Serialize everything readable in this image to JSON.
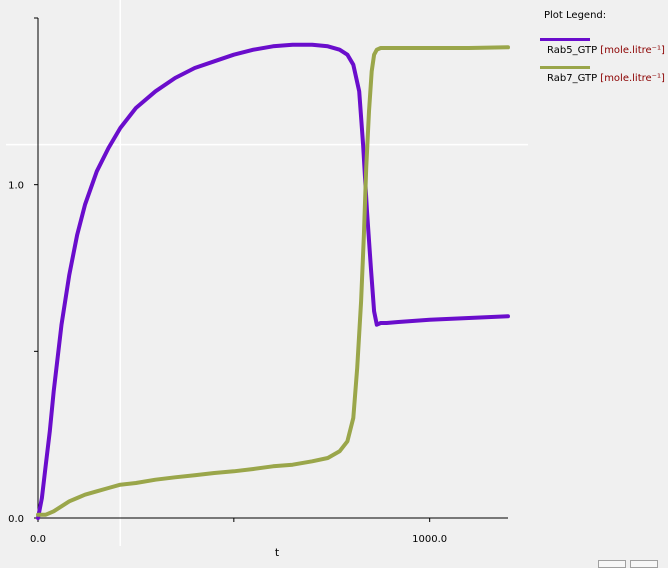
{
  "legend": {
    "title": "Plot Legend:",
    "entries": [
      {
        "name": "Rab5_GTP",
        "unit": "[mole.litre⁻¹]",
        "color": "#6a0dcc"
      },
      {
        "name": "Rab7_GTP",
        "unit": "[mole.litre⁻¹]",
        "color": "#9aa64a"
      }
    ]
  },
  "crosshair": {
    "x": 210,
    "y": 1.12
  },
  "chart_data": {
    "type": "line",
    "xlabel": "t",
    "ylabel": "",
    "xlim": [
      0,
      1200
    ],
    "ylim": [
      0,
      1.5
    ],
    "x_ticks": [
      {
        "value": 0,
        "label": "0.0"
      },
      {
        "value": 500,
        "label": ""
      },
      {
        "value": 1000,
        "label": "1000.0"
      }
    ],
    "y_ticks": [
      {
        "value": 0,
        "label": "0.0"
      },
      {
        "value": 0.5,
        "label": ""
      },
      {
        "value": 1.0,
        "label": "1.0"
      },
      {
        "value": 1.5,
        "label": ""
      }
    ],
    "grid": false,
    "legend_position": "right",
    "series": [
      {
        "name": "Rab5_GTP",
        "color": "#6a0dcc",
        "x": [
          0,
          10,
          20,
          30,
          40,
          50,
          60,
          80,
          100,
          120,
          150,
          180,
          210,
          250,
          300,
          350,
          400,
          450,
          500,
          550,
          600,
          650,
          700,
          740,
          770,
          790,
          805,
          820,
          830,
          840,
          850,
          858,
          865,
          875,
          890,
          920,
          1000,
          1100,
          1200
        ],
        "y": [
          0.0,
          0.06,
          0.16,
          0.26,
          0.38,
          0.48,
          0.58,
          0.73,
          0.85,
          0.94,
          1.04,
          1.11,
          1.17,
          1.23,
          1.28,
          1.32,
          1.35,
          1.37,
          1.39,
          1.405,
          1.415,
          1.42,
          1.42,
          1.415,
          1.405,
          1.39,
          1.36,
          1.28,
          1.12,
          0.92,
          0.75,
          0.62,
          0.58,
          0.585,
          0.585,
          0.588,
          0.595,
          0.6,
          0.605
        ]
      },
      {
        "name": "Rab7_GTP",
        "color": "#9aa64a",
        "x": [
          0,
          20,
          40,
          60,
          80,
          100,
          120,
          150,
          180,
          210,
          250,
          300,
          350,
          400,
          450,
          500,
          550,
          600,
          650,
          700,
          740,
          770,
          790,
          805,
          815,
          825,
          832,
          838,
          845,
          852,
          858,
          865,
          875,
          900,
          1000,
          1100,
          1200
        ],
        "y": [
          0.01,
          0.01,
          0.02,
          0.035,
          0.05,
          0.06,
          0.07,
          0.08,
          0.09,
          0.1,
          0.105,
          0.115,
          0.122,
          0.128,
          0.135,
          0.14,
          0.147,
          0.155,
          0.16,
          0.17,
          0.18,
          0.2,
          0.23,
          0.3,
          0.45,
          0.65,
          0.85,
          1.05,
          1.22,
          1.34,
          1.39,
          1.405,
          1.41,
          1.41,
          1.41,
          1.41,
          1.412
        ]
      }
    ]
  }
}
